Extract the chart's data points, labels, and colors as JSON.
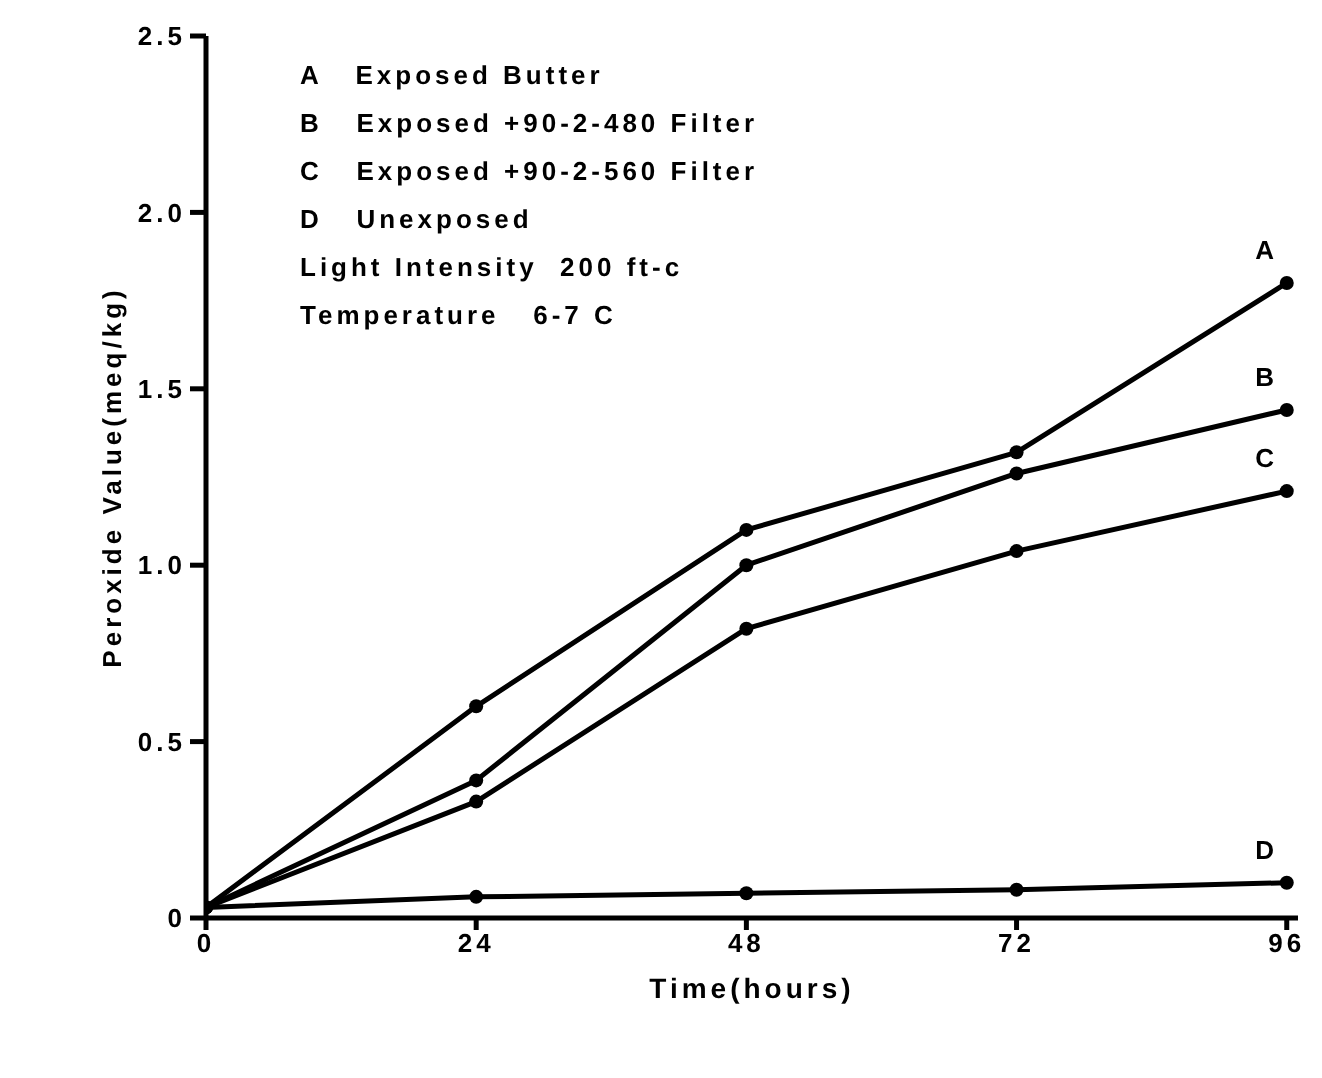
{
  "chart_data": {
    "type": "line",
    "xlabel": "Time(hours)",
    "ylabel": "Peroxide Value(meq/kg)",
    "x": [
      0,
      24,
      48,
      72,
      96
    ],
    "series": [
      {
        "name": "A",
        "color": "#000000",
        "values": [
          0.03,
          0.6,
          1.1,
          1.32,
          1.8
        ]
      },
      {
        "name": "B",
        "color": "#000000",
        "values": [
          0.03,
          0.39,
          1.0,
          1.26,
          1.44
        ]
      },
      {
        "name": "C",
        "color": "#000000",
        "values": [
          0.03,
          0.33,
          0.82,
          1.04,
          1.21
        ]
      },
      {
        "name": "D",
        "color": "#000000",
        "values": [
          0.03,
          0.06,
          0.07,
          0.08,
          0.1
        ]
      }
    ],
    "xlim": [
      0,
      97
    ],
    "xticks": [
      0,
      24,
      48,
      72,
      96
    ],
    "ylim": [
      0,
      2.5
    ],
    "yticks": [
      0,
      {
        "value": 0.5,
        "label": "0.5"
      },
      {
        "value": 1,
        "label": "1.0"
      },
      {
        "value": 1.5,
        "label": "1.5"
      },
      {
        "value": 2,
        "label": "2.0"
      },
      {
        "value": 2.5,
        "label": "2.5"
      }
    ],
    "grid": false,
    "legend": false,
    "marker": "circle",
    "line_style": "solid",
    "annotations": [
      "A   Exposed Butter",
      "B   Exposed +90-2-480 Filter",
      "C   Exposed +90-2-560 Filter",
      "D   Unexposed",
      "Light Intensity  200 ft-c",
      "Temperature   6-7 C"
    ]
  }
}
